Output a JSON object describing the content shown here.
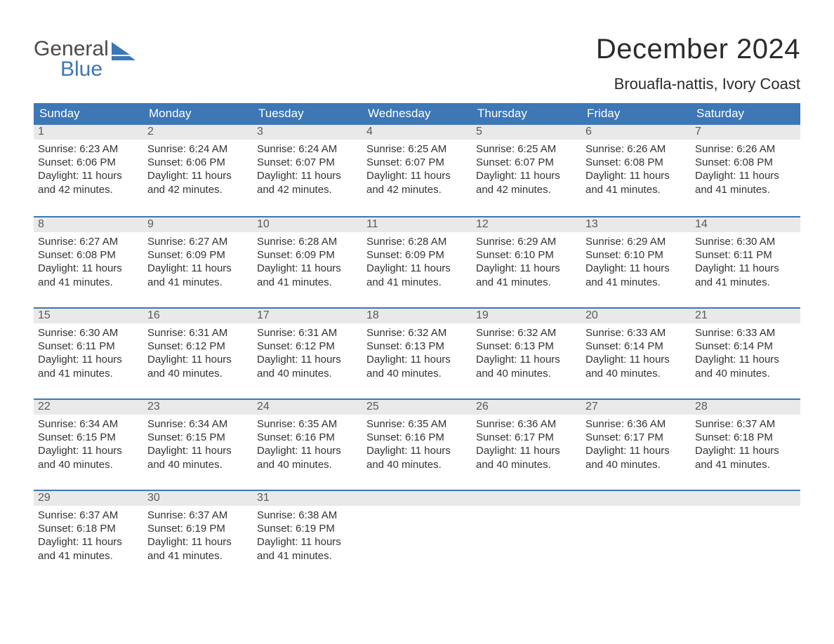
{
  "logo": {
    "word1": "General",
    "word2": "Blue",
    "mark_color": "#3d77b6"
  },
  "title": "December 2024",
  "location": "Brouafla-nattis, Ivory Coast",
  "colors": {
    "header_bg": "#3d77b6",
    "header_text": "#ffffff",
    "daynum_bg": "#e9e9e9",
    "daynum_text": "#5a5a5a",
    "body_text": "#333333",
    "week_divider": "#3d77b6",
    "page_bg": "#ffffff"
  },
  "day_names": [
    "Sunday",
    "Monday",
    "Tuesday",
    "Wednesday",
    "Thursday",
    "Friday",
    "Saturday"
  ],
  "weeks": [
    [
      {
        "n": "1",
        "sr": "6:23 AM",
        "ss": "6:06 PM",
        "dl": "11 hours and 42 minutes."
      },
      {
        "n": "2",
        "sr": "6:24 AM",
        "ss": "6:06 PM",
        "dl": "11 hours and 42 minutes."
      },
      {
        "n": "3",
        "sr": "6:24 AM",
        "ss": "6:07 PM",
        "dl": "11 hours and 42 minutes."
      },
      {
        "n": "4",
        "sr": "6:25 AM",
        "ss": "6:07 PM",
        "dl": "11 hours and 42 minutes."
      },
      {
        "n": "5",
        "sr": "6:25 AM",
        "ss": "6:07 PM",
        "dl": "11 hours and 42 minutes."
      },
      {
        "n": "6",
        "sr": "6:26 AM",
        "ss": "6:08 PM",
        "dl": "11 hours and 41 minutes."
      },
      {
        "n": "7",
        "sr": "6:26 AM",
        "ss": "6:08 PM",
        "dl": "11 hours and 41 minutes."
      }
    ],
    [
      {
        "n": "8",
        "sr": "6:27 AM",
        "ss": "6:08 PM",
        "dl": "11 hours and 41 minutes."
      },
      {
        "n": "9",
        "sr": "6:27 AM",
        "ss": "6:09 PM",
        "dl": "11 hours and 41 minutes."
      },
      {
        "n": "10",
        "sr": "6:28 AM",
        "ss": "6:09 PM",
        "dl": "11 hours and 41 minutes."
      },
      {
        "n": "11",
        "sr": "6:28 AM",
        "ss": "6:09 PM",
        "dl": "11 hours and 41 minutes."
      },
      {
        "n": "12",
        "sr": "6:29 AM",
        "ss": "6:10 PM",
        "dl": "11 hours and 41 minutes."
      },
      {
        "n": "13",
        "sr": "6:29 AM",
        "ss": "6:10 PM",
        "dl": "11 hours and 41 minutes."
      },
      {
        "n": "14",
        "sr": "6:30 AM",
        "ss": "6:11 PM",
        "dl": "11 hours and 41 minutes."
      }
    ],
    [
      {
        "n": "15",
        "sr": "6:30 AM",
        "ss": "6:11 PM",
        "dl": "11 hours and 41 minutes."
      },
      {
        "n": "16",
        "sr": "6:31 AM",
        "ss": "6:12 PM",
        "dl": "11 hours and 40 minutes."
      },
      {
        "n": "17",
        "sr": "6:31 AM",
        "ss": "6:12 PM",
        "dl": "11 hours and 40 minutes."
      },
      {
        "n": "18",
        "sr": "6:32 AM",
        "ss": "6:13 PM",
        "dl": "11 hours and 40 minutes."
      },
      {
        "n": "19",
        "sr": "6:32 AM",
        "ss": "6:13 PM",
        "dl": "11 hours and 40 minutes."
      },
      {
        "n": "20",
        "sr": "6:33 AM",
        "ss": "6:14 PM",
        "dl": "11 hours and 40 minutes."
      },
      {
        "n": "21",
        "sr": "6:33 AM",
        "ss": "6:14 PM",
        "dl": "11 hours and 40 minutes."
      }
    ],
    [
      {
        "n": "22",
        "sr": "6:34 AM",
        "ss": "6:15 PM",
        "dl": "11 hours and 40 minutes."
      },
      {
        "n": "23",
        "sr": "6:34 AM",
        "ss": "6:15 PM",
        "dl": "11 hours and 40 minutes."
      },
      {
        "n": "24",
        "sr": "6:35 AM",
        "ss": "6:16 PM",
        "dl": "11 hours and 40 minutes."
      },
      {
        "n": "25",
        "sr": "6:35 AM",
        "ss": "6:16 PM",
        "dl": "11 hours and 40 minutes."
      },
      {
        "n": "26",
        "sr": "6:36 AM",
        "ss": "6:17 PM",
        "dl": "11 hours and 40 minutes."
      },
      {
        "n": "27",
        "sr": "6:36 AM",
        "ss": "6:17 PM",
        "dl": "11 hours and 40 minutes."
      },
      {
        "n": "28",
        "sr": "6:37 AM",
        "ss": "6:18 PM",
        "dl": "11 hours and 41 minutes."
      }
    ],
    [
      {
        "n": "29",
        "sr": "6:37 AM",
        "ss": "6:18 PM",
        "dl": "11 hours and 41 minutes."
      },
      {
        "n": "30",
        "sr": "6:37 AM",
        "ss": "6:19 PM",
        "dl": "11 hours and 41 minutes."
      },
      {
        "n": "31",
        "sr": "6:38 AM",
        "ss": "6:19 PM",
        "dl": "11 hours and 41 minutes."
      },
      null,
      null,
      null,
      null
    ]
  ],
  "labels": {
    "sunrise": "Sunrise:",
    "sunset": "Sunset:",
    "daylight": "Daylight:"
  }
}
